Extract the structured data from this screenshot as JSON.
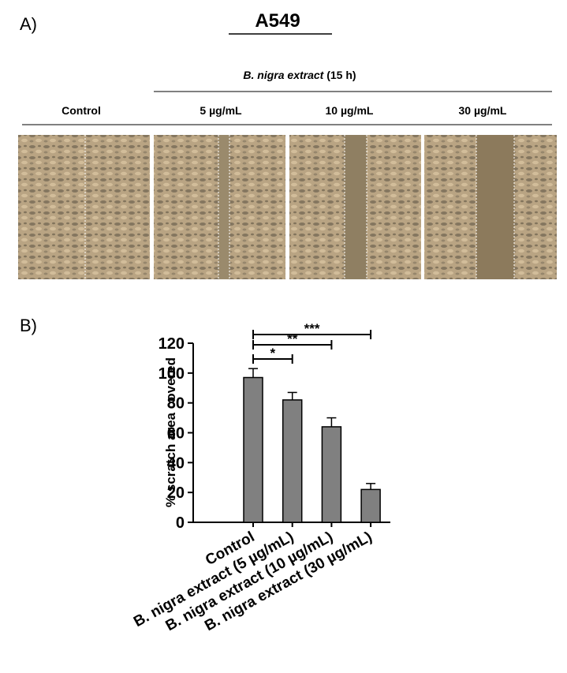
{
  "panel_a": {
    "label": "A)",
    "title": "A549",
    "treatment": {
      "name": "B. nigra extract",
      "duration": "(15 h)"
    },
    "columns": [
      "Control",
      "5 µg/mL",
      "10 µg/mL",
      "30 µg/mL"
    ]
  },
  "chart_data": {
    "type": "bar",
    "panel_label": "B)",
    "y_label": "% scratch area covered",
    "categories": [
      "Control",
      "B. nigra extract (5 µg/mL)",
      "B. nigra extract (10 µg/mL)",
      "B. nigra extract (30 µg/mL)"
    ],
    "values": [
      97,
      82,
      64,
      22
    ],
    "errors": [
      6,
      5,
      6,
      4
    ],
    "color": "#808080",
    "ylim": [
      0,
      120
    ],
    "yticks": [
      0,
      20,
      40,
      60,
      80,
      100,
      120
    ],
    "significance": [
      "*",
      "**",
      "***"
    ]
  }
}
